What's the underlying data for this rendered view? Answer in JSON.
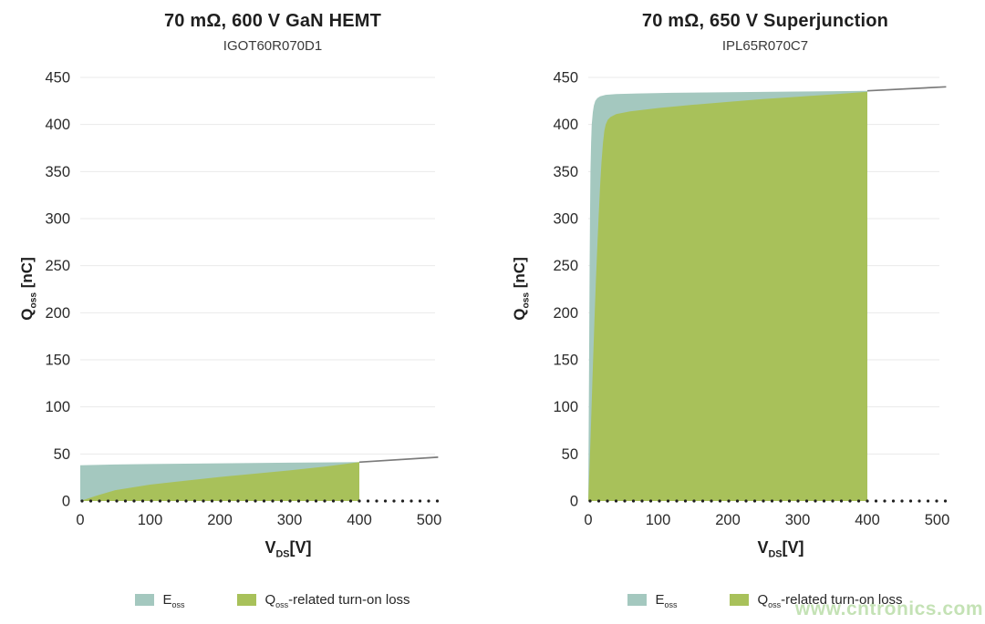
{
  "page": {
    "background": "#ffffff",
    "watermark": "www.cntronics.com"
  },
  "colors": {
    "eoss_fill": "#a4c8bf",
    "loss_fill": "#a8c15a",
    "curve_line": "#7b7b7b",
    "gridline": "#eaeaea",
    "axis_dots": "#1f1f1f",
    "tick_text": "#2b2b2b",
    "watermark": "#94ca78"
  },
  "axis_labels": {
    "y_rich": [
      [
        "Q"
      ],
      [
        "oss",
        "sub"
      ],
      [
        " [nC]"
      ]
    ],
    "x_rich": [
      [
        "V"
      ],
      [
        "DS",
        "sub"
      ],
      [
        "[V]"
      ]
    ]
  },
  "legend": {
    "items": [
      {
        "swatch_color": "#a4c8bf",
        "label": "E_oss",
        "rich": [
          [
            "E"
          ],
          [
            "oss",
            "sub"
          ]
        ]
      },
      {
        "swatch_color": "#a8c15a",
        "label": "Q_oss-related turn-on loss",
        "rich": [
          [
            "Q"
          ],
          [
            "oss",
            "sub"
          ],
          [
            "-related turn-on loss"
          ]
        ]
      }
    ]
  },
  "chart_data": [
    {
      "type": "area",
      "title": "70 mΩ, 600 V GaN HEMT",
      "subtitle": "IGOT60R070D1",
      "xlabel": "V_DS[V]",
      "ylabel": "Q_oss [nC]",
      "xlim": [
        0,
        520
      ],
      "ylim": [
        0,
        450
      ],
      "xticks": [
        0,
        100,
        200,
        300,
        400,
        500
      ],
      "yticks": [
        0,
        50,
        100,
        150,
        200,
        250,
        300,
        350,
        400,
        450
      ],
      "grid": "horizontal",
      "legend_position": "bottom",
      "fill_end_x": 400,
      "series": [
        {
          "name": "E_oss",
          "style": "area",
          "color": "#a4c8bf",
          "points": [
            [
              0,
              38
            ],
            [
              50,
              38.8
            ],
            [
              100,
              39.3
            ],
            [
              150,
              39.7
            ],
            [
              200,
              40.1
            ],
            [
              250,
              40.4
            ],
            [
              300,
              40.7
            ],
            [
              350,
              41
            ],
            [
              400,
              41.3
            ]
          ]
        },
        {
          "name": "Q_oss-related turn-on loss",
          "style": "area",
          "color": "#a8c15a",
          "points": [
            [
              0,
              0
            ],
            [
              25,
              6
            ],
            [
              50,
              11.5
            ],
            [
              100,
              17.4
            ],
            [
              150,
              21.5
            ],
            [
              200,
              25.5
            ],
            [
              250,
              29
            ],
            [
              300,
              32.5
            ],
            [
              350,
              36.5
            ],
            [
              400,
              41.3
            ]
          ]
        },
        {
          "name": "Q_oss curve beyond 400 V",
          "style": "line",
          "color": "#7b7b7b",
          "points": [
            [
              400,
              41.3
            ],
            [
              513,
              46.5
            ]
          ]
        }
      ]
    },
    {
      "type": "area",
      "title": "70 mΩ, 650 V Superjunction",
      "subtitle": "IPL65R070C7",
      "xlabel": "V_DS[V]",
      "ylabel": "Q_oss [nC]",
      "xlim": [
        0,
        520
      ],
      "ylim": [
        0,
        450
      ],
      "xticks": [
        0,
        100,
        200,
        300,
        400,
        500
      ],
      "yticks": [
        0,
        50,
        100,
        150,
        200,
        250,
        300,
        350,
        400,
        450
      ],
      "grid": "horizontal",
      "legend_position": "bottom",
      "fill_end_x": 400,
      "series": [
        {
          "name": "E_oss",
          "style": "area",
          "color": "#a4c8bf",
          "points": [
            [
              0,
              0
            ],
            [
              0.7,
              80
            ],
            [
              1.4,
              180
            ],
            [
              2,
              250
            ],
            [
              2.6,
              310
            ],
            [
              3.2,
              350
            ],
            [
              4,
              380
            ],
            [
              5,
              400
            ],
            [
              6.5,
              413
            ],
            [
              8,
              420
            ],
            [
              10,
              425
            ],
            [
              13,
              428
            ],
            [
              17,
              430
            ],
            [
              25,
              431.5
            ],
            [
              40,
              432.3
            ],
            [
              70,
              433
            ],
            [
              120,
              433.6
            ],
            [
              200,
              434.3
            ],
            [
              300,
              435
            ],
            [
              400,
              435.8
            ]
          ]
        },
        {
          "name": "Q_oss-related turn-on loss",
          "style": "area",
          "color": "#a8c15a",
          "points": [
            [
              0,
              0
            ],
            [
              3,
              60
            ],
            [
              6,
              130
            ],
            [
              9,
              195
            ],
            [
              11,
              235
            ],
            [
              13,
              270
            ],
            [
              15,
              305
            ],
            [
              17,
              335
            ],
            [
              19,
              360
            ],
            [
              21,
              380
            ],
            [
              23,
              393
            ],
            [
              25,
              400
            ],
            [
              28,
              405
            ],
            [
              32,
              408
            ],
            [
              40,
              411
            ],
            [
              60,
              414
            ],
            [
              100,
              417.5
            ],
            [
              150,
              421
            ],
            [
              200,
              424
            ],
            [
              250,
              427
            ],
            [
              300,
              429.5
            ],
            [
              350,
              432
            ],
            [
              400,
              434.8
            ]
          ]
        },
        {
          "name": "Q_oss curve beyond 400 V",
          "style": "line",
          "color": "#7b7b7b",
          "points": [
            [
              400,
              435.8
            ],
            [
              513,
              440
            ]
          ]
        }
      ]
    }
  ]
}
